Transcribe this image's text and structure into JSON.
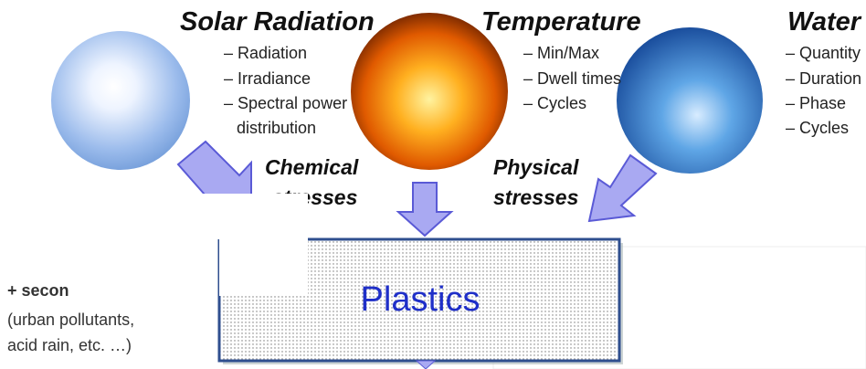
{
  "factors": [
    {
      "title": "Solar Radiation",
      "items": [
        "– Radiation",
        "– Irradiance",
        "– Spectral power",
        "distribution"
      ]
    },
    {
      "title": "Temperature",
      "items": [
        "– Min/Max",
        "– Dwell times",
        "– Cycles"
      ]
    },
    {
      "title": "Water",
      "items": [
        "– Quantity",
        "– Duration",
        "– Phase",
        "– Cycles"
      ]
    }
  ],
  "stresses": [
    {
      "lines": [
        "Chemical",
        "stresses"
      ]
    },
    {
      "lines": [
        "Physical",
        "stresses"
      ]
    }
  ],
  "center": {
    "label": "Plastics"
  },
  "note": {
    "lines": [
      "+ secon",
      "(urban pollutants,",
      "acid rain, etc. …)"
    ]
  }
}
